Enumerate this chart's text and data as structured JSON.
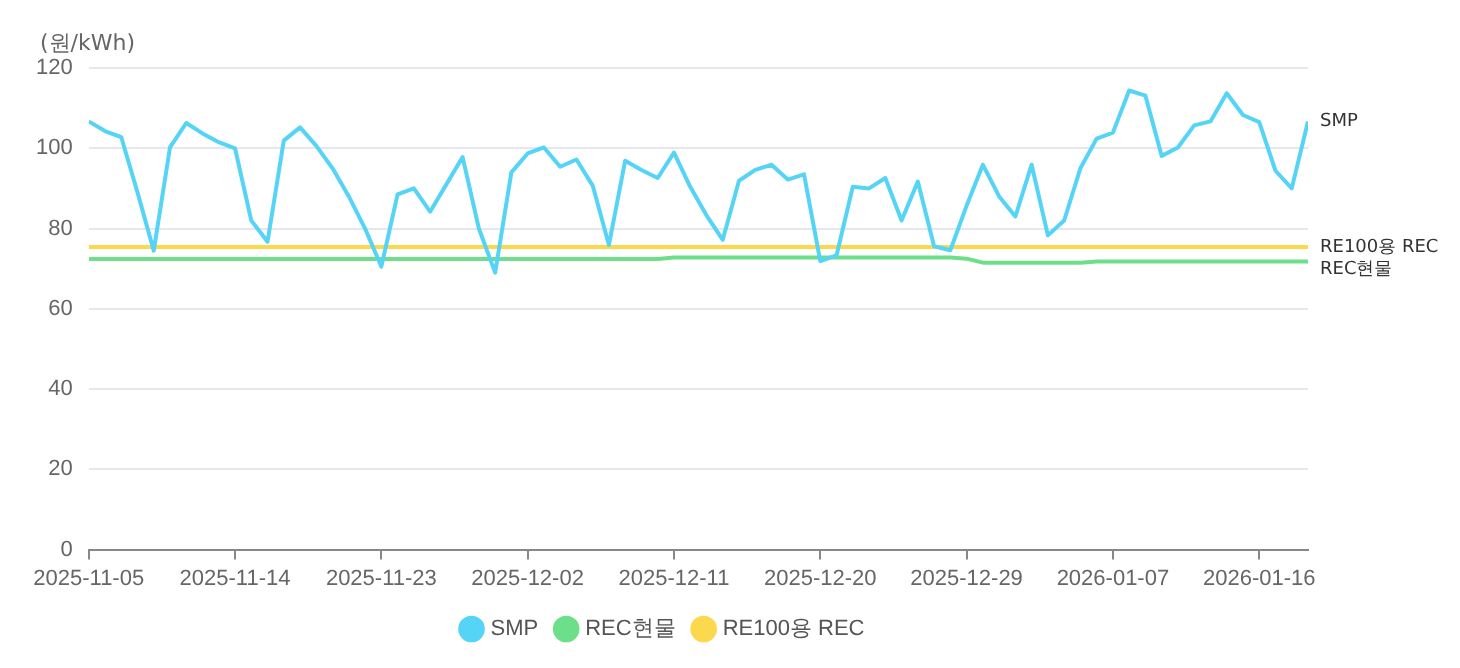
{
  "chart_data": {
    "type": "line",
    "ylabel": "(원/kWh)",
    "x": [
      "2025-11-05",
      "2025-11-06",
      "2025-11-07",
      "2025-11-08",
      "2025-11-09",
      "2025-11-10",
      "2025-11-11",
      "2025-11-12",
      "2025-11-13",
      "2025-11-14",
      "2025-11-15",
      "2025-11-16",
      "2025-11-17",
      "2025-11-18",
      "2025-11-19",
      "2025-11-20",
      "2025-11-21",
      "2025-11-22",
      "2025-11-23",
      "2025-11-24",
      "2025-11-25",
      "2025-11-26",
      "2025-11-27",
      "2025-11-28",
      "2025-11-29",
      "2025-11-30",
      "2025-12-01",
      "2025-12-02",
      "2025-12-03",
      "2025-12-04",
      "2025-12-05",
      "2025-12-06",
      "2025-12-07",
      "2025-12-08",
      "2025-12-09",
      "2025-12-10",
      "2025-12-11",
      "2025-12-12",
      "2025-12-13",
      "2025-12-14",
      "2025-12-15",
      "2025-12-16",
      "2025-12-17",
      "2025-12-18",
      "2025-12-19",
      "2025-12-20",
      "2025-12-21",
      "2025-12-22",
      "2025-12-23",
      "2025-12-24",
      "2025-12-25",
      "2025-12-26",
      "2025-12-27",
      "2025-12-28",
      "2025-12-29",
      "2025-12-30",
      "2025-12-31",
      "2026-01-01",
      "2026-01-02",
      "2026-01-03",
      "2026-01-04",
      "2026-01-05",
      "2026-01-06",
      "2026-01-07",
      "2026-01-08",
      "2026-01-09",
      "2026-01-10",
      "2026-01-11",
      "2026-01-12",
      "2026-01-13",
      "2026-01-14",
      "2026-01-15",
      "2026-01-16",
      "2026-01-17",
      "2026-01-18",
      "2026-01-19"
    ],
    "series": [
      {
        "name": "SMP",
        "color": "#55d4f6",
        "values": [
          106.7,
          104.3,
          102.8,
          89,
          74.5,
          100.2,
          106.3,
          103.7,
          101.5,
          100,
          82,
          76.7,
          101.9,
          105.2,
          100.6,
          95,
          88,
          80,
          70.5,
          88.5,
          90,
          84.2,
          91,
          97.8,
          80,
          69,
          94,
          98.7,
          100.2,
          95.4,
          97.2,
          90.7,
          75.9,
          96.9,
          94.6,
          92.6,
          98.9,
          90.4,
          83.3,
          77.2,
          91.9,
          94.6,
          95.9,
          92.2,
          93.5,
          71.9,
          73.3,
          90.4,
          90,
          92.6,
          82,
          91.7,
          75.6,
          74.6,
          85.7,
          95.9,
          88,
          83,
          95.9,
          78.3,
          82,
          95,
          102.4,
          103.9,
          114.4,
          113.1,
          98.1,
          100.2,
          105.7,
          106.7,
          113.7,
          108.3,
          106.5,
          94.4,
          90,
          106.7
        ]
      },
      {
        "name": "REC현물",
        "color": "#6ddf8a",
        "values": [
          72.4,
          72.4,
          72.4,
          72.4,
          72.4,
          72.4,
          72.4,
          72.4,
          72.4,
          72.4,
          72.4,
          72.4,
          72.4,
          72.4,
          72.4,
          72.4,
          72.4,
          72.4,
          72.4,
          72.4,
          72.4,
          72.4,
          72.4,
          72.4,
          72.4,
          72.4,
          72.4,
          72.4,
          72.4,
          72.4,
          72.4,
          72.4,
          72.4,
          72.4,
          72.4,
          72.4,
          72.8,
          72.8,
          72.8,
          72.8,
          72.8,
          72.8,
          72.8,
          72.8,
          72.8,
          72.8,
          72.8,
          72.8,
          72.8,
          72.8,
          72.8,
          72.8,
          72.8,
          72.8,
          72.5,
          71.5,
          71.5,
          71.5,
          71.5,
          71.5,
          71.5,
          71.5,
          71.8,
          71.8,
          71.8,
          71.8,
          71.8,
          71.8,
          71.8,
          71.8,
          71.8,
          71.8,
          71.8,
          71.8,
          71.8,
          71.8
        ]
      },
      {
        "name": "RE100용 REC",
        "color": "#fbd84c",
        "values": [
          75.4,
          75.4,
          75.4,
          75.4,
          75.4,
          75.4,
          75.4,
          75.4,
          75.4,
          75.4,
          75.4,
          75.4,
          75.4,
          75.4,
          75.4,
          75.4,
          75.4,
          75.4,
          75.4,
          75.4,
          75.4,
          75.4,
          75.4,
          75.4,
          75.4,
          75.4,
          75.4,
          75.4,
          75.4,
          75.4,
          75.4,
          75.4,
          75.4,
          75.4,
          75.4,
          75.4,
          75.4,
          75.4,
          75.4,
          75.4,
          75.4,
          75.4,
          75.4,
          75.4,
          75.4,
          75.4,
          75.4,
          75.4,
          75.4,
          75.4,
          75.4,
          75.4,
          75.4,
          75.4,
          75.4,
          75.4,
          75.4,
          75.4,
          75.4,
          75.4,
          75.4,
          75.4,
          75.4,
          75.4,
          75.4,
          75.4,
          75.4,
          75.4,
          75.4,
          75.4,
          75.4,
          75.4,
          75.4,
          75.4,
          75.4,
          75.4
        ]
      }
    ],
    "xlim": [
      "2025-11-05",
      "2026-01-19"
    ],
    "xticks": [
      "2025-11-05",
      "2025-11-14",
      "2025-11-23",
      "2025-12-02",
      "2025-12-11",
      "2025-12-20",
      "2025-12-29",
      "2026-01-07",
      "2026-01-16"
    ],
    "ylim": [
      0,
      120
    ],
    "yticks": [
      0,
      20,
      40,
      60,
      80,
      100,
      120
    ],
    "grid": "y",
    "legend": "bottom",
    "marker": "none",
    "line_style": "solid"
  }
}
